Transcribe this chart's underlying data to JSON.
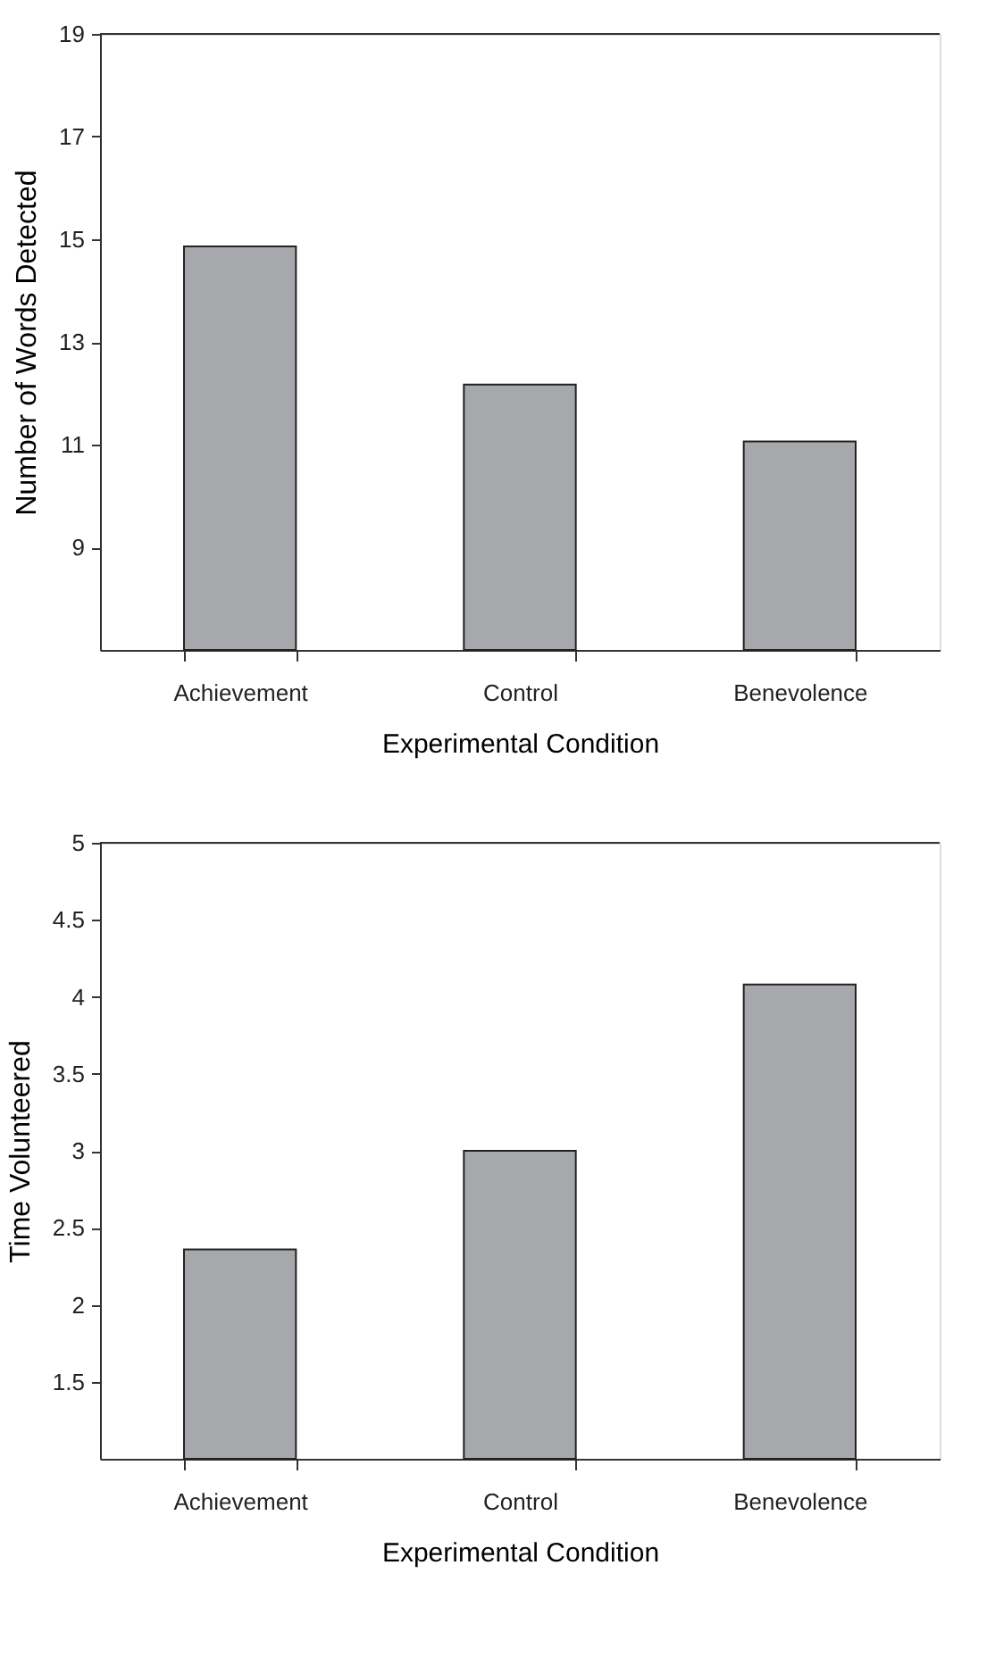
{
  "chart_data": [
    {
      "type": "bar",
      "categories": [
        "Achievement",
        "Control",
        "Benevolence"
      ],
      "values": [
        14.86,
        12.17,
        11.06
      ],
      "color": "#a7a8ab",
      "xlabel": "Experimental Condition",
      "ylabel": "Number of Words Detected",
      "ylim": [
        7,
        19
      ],
      "yticks": [
        9,
        11,
        13,
        15,
        17,
        19
      ],
      "grid": false
    },
    {
      "type": "bar",
      "categories": [
        "Achievement",
        "Control",
        "Benevolence"
      ],
      "values": [
        2.36,
        3.0,
        4.08
      ],
      "color": "#a7a8ab",
      "xlabel": "Experimental Condition",
      "ylabel": "Time Volunteered",
      "ylim": [
        1,
        5
      ],
      "yticks": [
        1.5,
        2,
        2.5,
        3,
        3.5,
        4,
        4.5,
        5
      ],
      "grid": false
    }
  ]
}
